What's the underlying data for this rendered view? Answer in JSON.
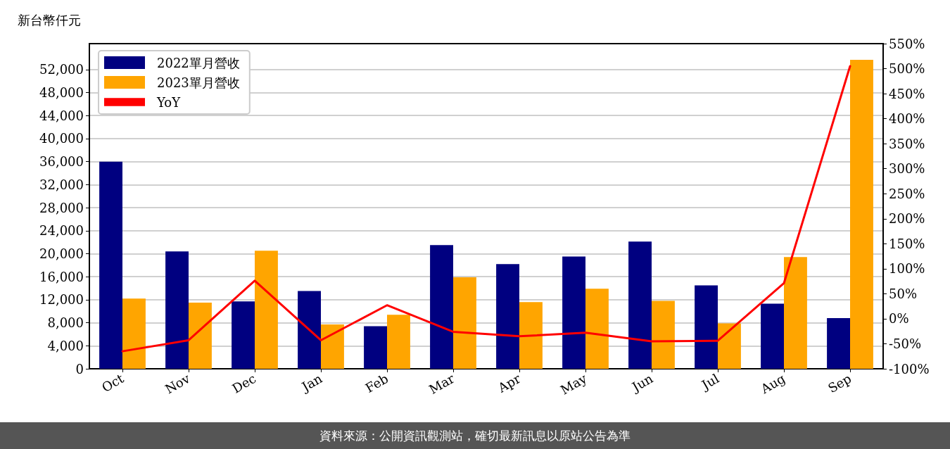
{
  "chart_data": {
    "type": "bar",
    "ylabel": "新台幣仟元",
    "categories": [
      "Oct",
      "Nov",
      "Dec",
      "Jan",
      "Feb",
      "Mar",
      "Apr",
      "May",
      "Jun",
      "Jul",
      "Aug",
      "Sep"
    ],
    "series": [
      {
        "name": "2022單月營收",
        "color": "#000080",
        "values": [
          36000,
          20400,
          11700,
          13500,
          7400,
          21500,
          18200,
          19500,
          22100,
          14500,
          11300,
          8800
        ]
      },
      {
        "name": "2023單月營收",
        "color": "#ffa500",
        "values": [
          12200,
          11500,
          20500,
          7700,
          9400,
          15900,
          11600,
          13900,
          11800,
          7900,
          19400,
          53700
        ]
      },
      {
        "name": "YoY",
        "type": "line",
        "axis": "y2",
        "color": "#ff0000",
        "values": [
          -65,
          -43,
          76,
          -43,
          27,
          -26,
          -35,
          -28,
          -45,
          -44,
          71,
          505
        ]
      }
    ],
    "ylim": [
      0,
      56500
    ],
    "yticks": [
      0,
      {
        "value": 4000,
        "label": "4,000"
      },
      {
        "value": 8000,
        "label": "8,000"
      },
      {
        "value": 12000,
        "label": "12,000"
      },
      {
        "value": 16000,
        "label": "16,000"
      },
      {
        "value": 20000,
        "label": "20,000"
      },
      {
        "value": 24000,
        "label": "24,000"
      },
      {
        "value": 28000,
        "label": "28,000"
      },
      {
        "value": 32000,
        "label": "32,000"
      },
      {
        "value": 36000,
        "label": "36,000"
      },
      {
        "value": 40000,
        "label": "40,000"
      },
      {
        "value": 44000,
        "label": "44,000"
      },
      {
        "value": 48000,
        "label": "48,000"
      },
      {
        "value": 52000,
        "label": "52,000"
      }
    ],
    "y2lim": [
      -100,
      550
    ],
    "y2ticks": [
      {
        "value": -100,
        "label": "-100%"
      },
      {
        "value": -50,
        "label": "-50%"
      },
      {
        "value": 0,
        "label": "0%"
      },
      {
        "value": 50,
        "label": "50%"
      },
      {
        "value": 100,
        "label": "100%"
      },
      {
        "value": 150,
        "label": "150%"
      },
      {
        "value": 200,
        "label": "200%"
      },
      {
        "value": 250,
        "label": "250%"
      },
      {
        "value": 300,
        "label": "300%"
      },
      {
        "value": 350,
        "label": "350%"
      },
      {
        "value": 400,
        "label": "400%"
      },
      {
        "value": 450,
        "label": "450%"
      },
      {
        "value": 500,
        "label": "500%"
      },
      {
        "value": 550,
        "label": "550%"
      }
    ],
    "grid": "y",
    "legend": "top left",
    "marker": "none",
    "line_style": "solid",
    "annotations": [
      "資料來源：公開資訊觀測站，確切最新訊息以原站公告為準"
    ]
  }
}
